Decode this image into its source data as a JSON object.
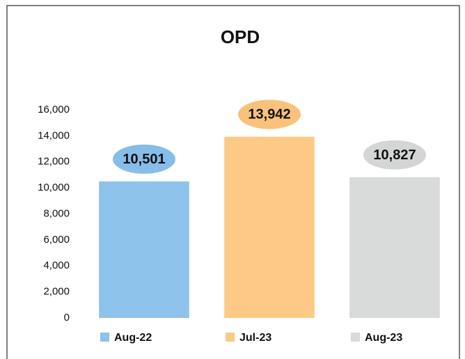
{
  "chart_data": {
    "type": "bar",
    "title": "OPD",
    "categories": [
      "Aug-22",
      "Jul-23",
      "Aug-23"
    ],
    "values": [
      10501,
      13942,
      10827
    ],
    "value_labels": [
      "10,501",
      "13,942",
      "10,827"
    ],
    "colors": [
      "#8ec3ec",
      "#fcca86",
      "#d9dada"
    ],
    "label_colors": [
      "#86bde9",
      "#f8c27b",
      "#d4d5d5"
    ],
    "ylim": [
      0,
      16000
    ],
    "yticks": [
      0,
      {
        "value": 2000,
        "label": "2,000"
      },
      {
        "value": 4000,
        "label": "4,000"
      },
      {
        "value": 6000,
        "label": "6,000"
      },
      {
        "value": 8000,
        "label": "8,000"
      },
      {
        "value": 10000,
        "label": "10,000"
      },
      {
        "value": 12000,
        "label": "12,000"
      },
      {
        "value": 14000,
        "label": "14,000"
      },
      {
        "value": 16000,
        "label": "16,000"
      }
    ],
    "grid": false,
    "legend": "bottom"
  }
}
